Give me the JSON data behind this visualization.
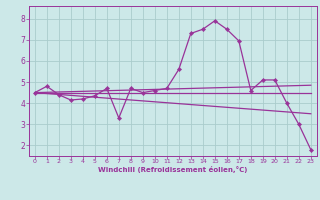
{
  "background_color": "#cce8e8",
  "grid_color": "#aacccc",
  "line_color": "#993399",
  "spine_color": "#993399",
  "xlabel": "Windchill (Refroidissement éolien,°C)",
  "xlim": [
    -0.5,
    23.5
  ],
  "ylim": [
    1.5,
    8.6
  ],
  "yticks": [
    2,
    3,
    4,
    5,
    6,
    7,
    8
  ],
  "xticks": [
    0,
    1,
    2,
    3,
    4,
    5,
    6,
    7,
    8,
    9,
    10,
    11,
    12,
    13,
    14,
    15,
    16,
    17,
    18,
    19,
    20,
    21,
    22,
    23
  ],
  "line1_x": [
    0,
    1,
    2,
    3,
    4,
    5,
    6,
    7,
    8,
    9,
    10,
    11,
    12,
    13,
    14,
    15,
    16,
    17,
    18,
    19,
    20,
    21,
    22,
    23
  ],
  "line1_y": [
    4.5,
    4.8,
    4.4,
    4.15,
    4.2,
    4.35,
    4.7,
    3.3,
    4.7,
    4.5,
    4.6,
    4.7,
    5.6,
    7.3,
    7.5,
    7.9,
    7.5,
    6.95,
    4.6,
    5.1,
    5.1,
    4.0,
    3.0,
    1.8
  ],
  "line2_x": [
    0,
    23
  ],
  "line2_y": [
    4.5,
    4.85
  ],
  "line3_x": [
    0,
    23
  ],
  "line3_y": [
    4.5,
    4.5
  ],
  "line4_x": [
    0,
    23
  ],
  "line4_y": [
    4.5,
    3.5
  ]
}
